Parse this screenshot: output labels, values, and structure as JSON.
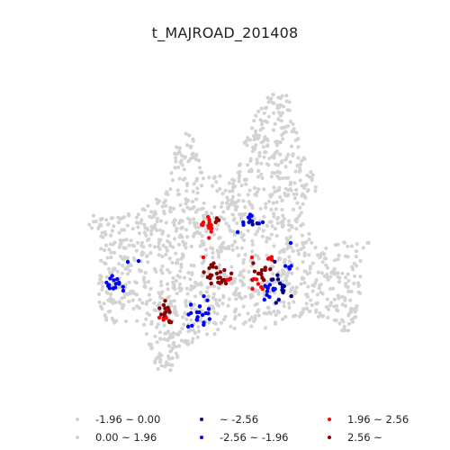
{
  "title": "t_MAJROAD_201408",
  "colors": {
    "neutral": "#d3d3d3",
    "blue_dark": "#00008b",
    "blue": "#0000ff",
    "red": "#ff0000",
    "red_dark": "#8b0000"
  },
  "legend": [
    {
      "label": "-1.96 ~ 0.00",
      "color": "#d3d3d3"
    },
    {
      "label": "0.00 ~ 1.96",
      "color": "#d3d3d3"
    },
    {
      "label": "~ -2.56",
      "color": "#00008b"
    },
    {
      "label": "-2.56 ~ -1.96",
      "color": "#0000ff"
    },
    {
      "label": "1.96 ~ 2.56",
      "color": "#ff0000"
    },
    {
      "label": "2.56 ~",
      "color": "#8b0000"
    }
  ]
}
